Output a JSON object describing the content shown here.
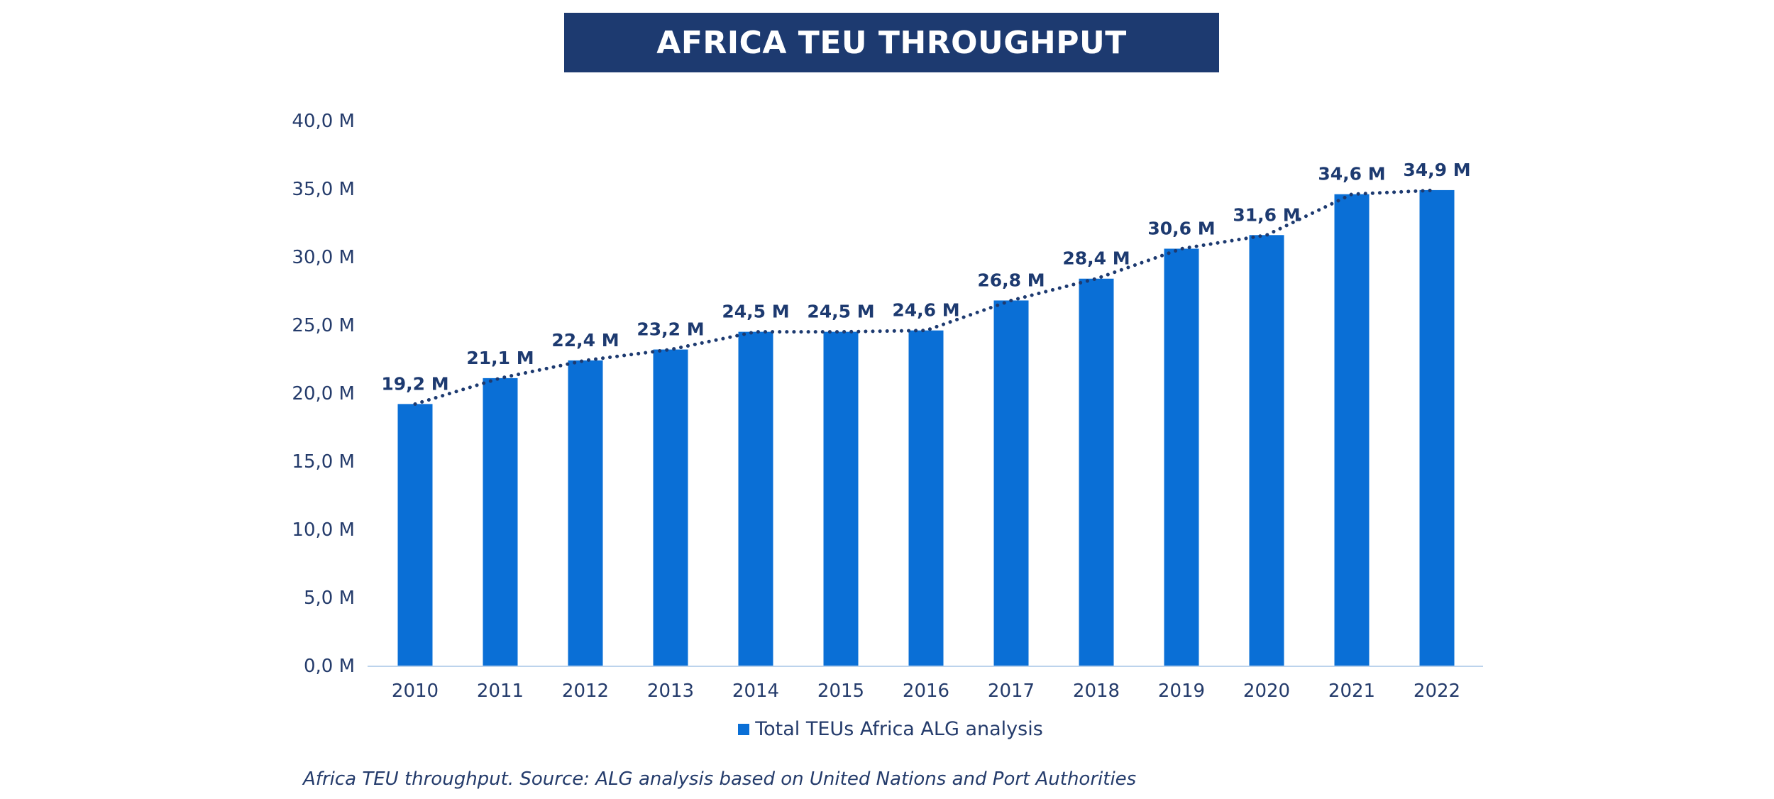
{
  "chart_data": {
    "type": "bar",
    "title": "AFRICA TEU THROUGHPUT",
    "categories": [
      "2010",
      "2011",
      "2012",
      "2013",
      "2014",
      "2015",
      "2016",
      "2017",
      "2018",
      "2019",
      "2020",
      "2021",
      "2022"
    ],
    "series": [
      {
        "name": "Total TEUs Africa ALG analysis",
        "values": [
          19.2,
          21.1,
          22.4,
          23.2,
          24.5,
          24.5,
          24.6,
          26.8,
          28.4,
          30.6,
          31.6,
          34.6,
          34.9
        ]
      }
    ],
    "data_labels": [
      "19,2 M",
      "21,1 M",
      "22,4 M",
      "23,2 M",
      "24,5 M",
      "24,5 M",
      "24,6 M",
      "26,8 M",
      "28,4 M",
      "30,6 M",
      "31,6 M",
      "34,6 M",
      "34,9 M"
    ],
    "y_ticks": [
      0,
      5,
      10,
      15,
      20,
      25,
      30,
      35,
      40
    ],
    "y_tick_labels": [
      "0,0 M",
      "5,0 M",
      "10,0 M",
      "15,0 M",
      "20,0 M",
      "25,0 M",
      "30,0 M",
      "35,0 M",
      "40,0 M"
    ],
    "ylim": [
      0,
      40
    ],
    "grid": false,
    "trendline": "dotted",
    "legend_position": "bottom"
  },
  "caption": "Africa TEU throughput. Source: ALG analysis based on United Nations and Port Authorities",
  "colors": {
    "bar": "#0a6fd6",
    "trendline": "#1d3a70",
    "label": "#1d3a70",
    "banner": "#1d3a70",
    "axis": "#bcd3ec"
  }
}
